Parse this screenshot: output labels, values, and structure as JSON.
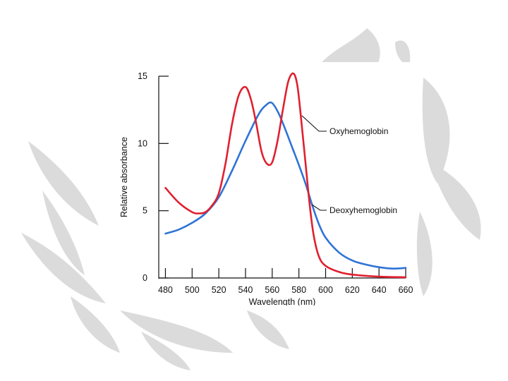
{
  "chart_data": {
    "type": "line",
    "xlabel": "Wavelength (nm)",
    "ylabel": "Relative absorbance",
    "xlim": [
      475,
      660
    ],
    "ylim": [
      0,
      15
    ],
    "xticks": [
      "480",
      "500",
      "520",
      "540",
      "560",
      "580",
      "600",
      "620",
      "640",
      "660"
    ],
    "yticks": [
      "0",
      "5",
      "10",
      "15"
    ],
    "grid": false,
    "series": [
      {
        "name": "Oxyhemoglobin",
        "color": "#e0202f",
        "points": [
          [
            480,
            6.7
          ],
          [
            490,
            5.6
          ],
          [
            500,
            4.9
          ],
          [
            505,
            4.8
          ],
          [
            510,
            4.9
          ],
          [
            515,
            5.4
          ],
          [
            520,
            6.3
          ],
          [
            525,
            8.5
          ],
          [
            530,
            11.5
          ],
          [
            535,
            13.6
          ],
          [
            540,
            14.2
          ],
          [
            544,
            13.3
          ],
          [
            548,
            11.5
          ],
          [
            552,
            9.4
          ],
          [
            556,
            8.5
          ],
          [
            560,
            8.6
          ],
          [
            564,
            10.2
          ],
          [
            568,
            12.5
          ],
          [
            572,
            14.6
          ],
          [
            576,
            15.2
          ],
          [
            579,
            14.2
          ],
          [
            582,
            11.5
          ],
          [
            585,
            8.5
          ],
          [
            588,
            5.5
          ],
          [
            591,
            3.2
          ],
          [
            595,
            1.6
          ],
          [
            600,
            0.9
          ],
          [
            610,
            0.45
          ],
          [
            620,
            0.25
          ],
          [
            640,
            0.1
          ],
          [
            660,
            0.05
          ]
        ]
      },
      {
        "name": "Deoxyhemoglobin",
        "color": "#2f73d6",
        "points": [
          [
            480,
            3.3
          ],
          [
            490,
            3.6
          ],
          [
            500,
            4.1
          ],
          [
            510,
            4.8
          ],
          [
            520,
            6.0
          ],
          [
            530,
            8.0
          ],
          [
            540,
            10.2
          ],
          [
            550,
            12.2
          ],
          [
            556,
            12.9
          ],
          [
            560,
            13.0
          ],
          [
            565,
            12.2
          ],
          [
            570,
            11.0
          ],
          [
            575,
            9.7
          ],
          [
            580,
            8.4
          ],
          [
            585,
            7.0
          ],
          [
            590,
            5.4
          ],
          [
            595,
            4.0
          ],
          [
            600,
            3.0
          ],
          [
            610,
            1.9
          ],
          [
            620,
            1.3
          ],
          [
            630,
            1.0
          ],
          [
            640,
            0.8
          ],
          [
            650,
            0.7
          ],
          [
            660,
            0.75
          ]
        ]
      }
    ],
    "annotations": [
      {
        "text": "Oxyhemoglobin",
        "series": "Oxyhemoglobin"
      },
      {
        "text": "Deoxyhemoglobin",
        "series": "Deoxyhemoglobin"
      }
    ]
  }
}
